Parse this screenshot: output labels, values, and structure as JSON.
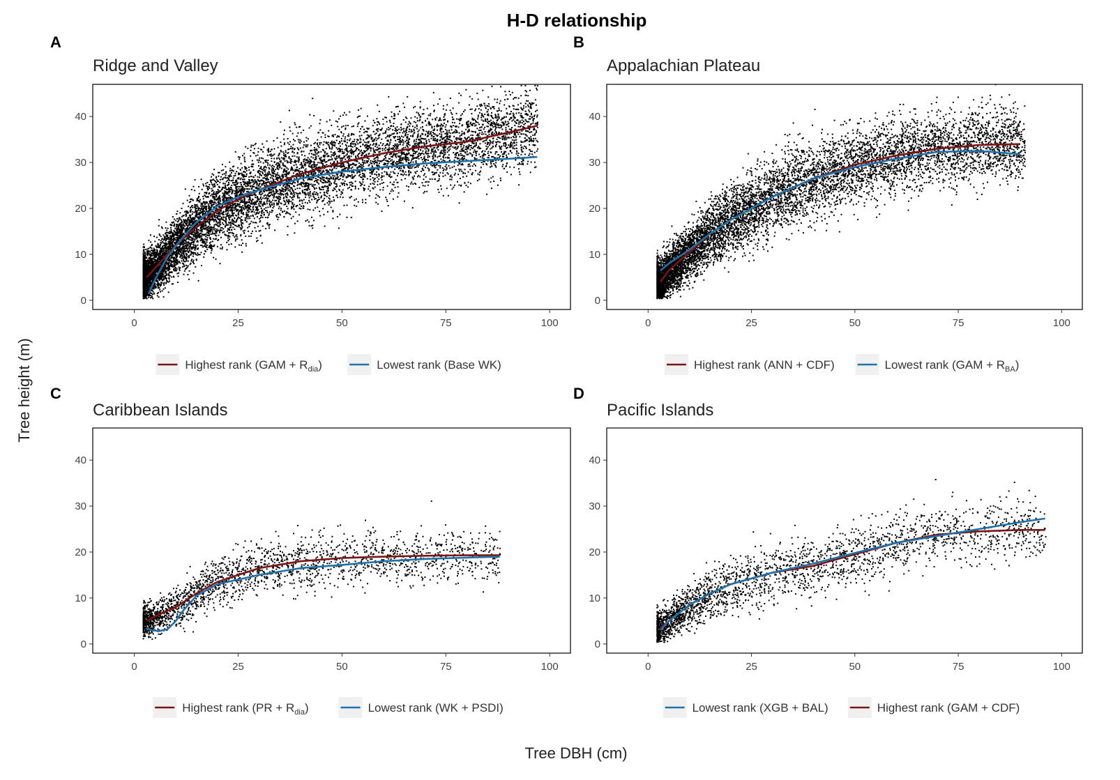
{
  "figure": {
    "title": "H-D relationship",
    "xlabel": "Tree DBH (cm)",
    "ylabel": "Tree height (m)"
  },
  "colors": {
    "dark_red": "#7b1414",
    "blue": "#1d72aa",
    "points": "#000000"
  },
  "chart_data": [
    {
      "type": "scatter",
      "panel": "A",
      "title": "Ridge and Valley",
      "xlim": [
        -10,
        105
      ],
      "ylim": [
        -2,
        47
      ],
      "xticks": [
        0,
        25,
        50,
        75,
        100
      ],
      "yticks": [
        0,
        10,
        20,
        30,
        40
      ],
      "scatter_profile": {
        "xmin": 2,
        "xmax": 97,
        "n": 9000,
        "spread": 4.2
      },
      "legend": [
        {
          "label": "Highest rank (GAM + R",
          "sub": "dia",
          "suffix": ")",
          "color": "#7b1414"
        },
        {
          "label": "Lowest rank (Base WK)",
          "sub": "",
          "suffix": "",
          "color": "#1d72aa"
        }
      ],
      "series": [
        {
          "name": "Highest rank (GAM + Rdia)",
          "color": "#7b1414",
          "x": [
            3,
            5,
            10,
            15,
            20,
            25,
            30,
            40,
            50,
            60,
            70,
            80,
            90,
            97
          ],
          "y": [
            5,
            7,
            12,
            16,
            19.5,
            22,
            24,
            27.5,
            30,
            32,
            33.5,
            34.5,
            36.5,
            38
          ]
        },
        {
          "name": "Lowest rank (Base WK)",
          "color": "#1d72aa",
          "x": [
            3.5,
            5,
            8,
            12,
            15,
            20,
            25,
            30,
            40,
            50,
            60,
            70,
            80,
            90,
            97
          ],
          "y": [
            1.5,
            4.5,
            9.5,
            14,
            17,
            20.5,
            22.5,
            24,
            26.5,
            28,
            29,
            29.8,
            30.3,
            30.8,
            31.2
          ]
        }
      ]
    },
    {
      "type": "scatter",
      "panel": "B",
      "title": "Appalachian Plateau",
      "xlim": [
        -10,
        105
      ],
      "ylim": [
        -2,
        47
      ],
      "xticks": [
        0,
        25,
        50,
        75,
        100
      ],
      "yticks": [
        0,
        10,
        20,
        30,
        40
      ],
      "scatter_profile": {
        "xmin": 2,
        "xmax": 91,
        "n": 8000,
        "spread": 4.0
      },
      "legend": [
        {
          "label": "Highest rank (ANN + CDF)",
          "sub": "",
          "suffix": "",
          "color": "#7b1414"
        },
        {
          "label": "Lowest rank (GAM + R",
          "sub": "BA",
          "suffix": ")",
          "color": "#1d72aa"
        }
      ],
      "series": [
        {
          "name": "Highest rank (ANN + CDF)",
          "color": "#7b1414",
          "x": [
            3,
            5,
            10,
            15,
            20,
            30,
            40,
            50,
            60,
            70,
            80,
            90
          ],
          "y": [
            4,
            6.5,
            10.5,
            14.5,
            17.5,
            22.5,
            26.5,
            29.5,
            31.5,
            33,
            33.8,
            34
          ]
        },
        {
          "name": "Lowest rank (GAM + RBA)",
          "color": "#1d72aa",
          "x": [
            3,
            5,
            10,
            15,
            20,
            30,
            40,
            50,
            60,
            70,
            80,
            90
          ],
          "y": [
            6.5,
            8,
            11,
            14.5,
            17.5,
            22.5,
            26.5,
            29,
            30.8,
            32.3,
            32.5,
            31.8
          ]
        }
      ]
    },
    {
      "type": "scatter",
      "panel": "C",
      "title": "Caribbean Islands",
      "xlim": [
        -10,
        105
      ],
      "ylim": [
        -2,
        47
      ],
      "xticks": [
        0,
        25,
        50,
        75,
        100
      ],
      "yticks": [
        0,
        10,
        20,
        30,
        40
      ],
      "scatter_profile": {
        "xmin": 2,
        "xmax": 88,
        "n": 2200,
        "spread": 2.8
      },
      "legend": [
        {
          "label": "Highest rank (PR + R",
          "sub": "dia",
          "suffix": ")",
          "color": "#7b1414"
        },
        {
          "label": "Lowest rank (WK + PSDI)",
          "sub": "",
          "suffix": "",
          "color": "#1d72aa"
        }
      ],
      "series": [
        {
          "name": "Highest rank (PR + Rdia)",
          "color": "#7b1414",
          "x": [
            3,
            5,
            10,
            15,
            20,
            25,
            30,
            40,
            50,
            60,
            70,
            80,
            88
          ],
          "y": [
            5,
            6,
            8,
            11,
            13.5,
            15,
            16.5,
            18,
            18.7,
            19,
            19.2,
            19.3,
            19.3
          ]
        },
        {
          "name": "Lowest rank (WK + PSDI)",
          "color": "#1d72aa",
          "x": [
            3,
            4,
            6,
            8,
            10,
            12,
            15,
            20,
            25,
            30,
            40,
            50,
            60,
            70,
            80,
            88
          ],
          "y": [
            3.5,
            3,
            2.8,
            3.2,
            5,
            7.5,
            10.5,
            13,
            14,
            15,
            16.5,
            17.2,
            18,
            18.5,
            18.8,
            19
          ]
        }
      ]
    },
    {
      "type": "scatter",
      "panel": "D",
      "title": "Pacific Islands",
      "xlim": [
        -10,
        105
      ],
      "ylim": [
        -2,
        47
      ],
      "xticks": [
        0,
        25,
        50,
        75,
        100
      ],
      "yticks": [
        0,
        10,
        20,
        30,
        40
      ],
      "scatter_profile": {
        "xmin": 2,
        "xmax": 96,
        "n": 2500,
        "spread": 3.2
      },
      "legend": [
        {
          "label": "Lowest rank (XGB + BAL)",
          "sub": "",
          "suffix": "",
          "color": "#1d72aa"
        },
        {
          "label": "Highest rank (GAM + CDF)",
          "sub": "",
          "suffix": "",
          "color": "#7b1414"
        }
      ],
      "series": [
        {
          "name": "Highest rank (GAM + CDF)",
          "color": "#7b1414",
          "x": [
            3,
            5,
            10,
            15,
            20,
            30,
            40,
            50,
            60,
            70,
            80,
            90,
            96
          ],
          "y": [
            3.5,
            5,
            8.5,
            11,
            13,
            15.5,
            17,
            19.5,
            22,
            23.8,
            24.5,
            24.8,
            24.8
          ]
        },
        {
          "name": "Lowest rank (XGB + BAL)",
          "color": "#1d72aa",
          "x": [
            3,
            5,
            10,
            15,
            20,
            30,
            40,
            50,
            60,
            70,
            80,
            90,
            96
          ],
          "y": [
            3,
            5,
            8.5,
            11,
            13,
            15.5,
            17.5,
            19.8,
            22,
            23.5,
            25,
            26.5,
            27.3
          ]
        }
      ]
    }
  ]
}
